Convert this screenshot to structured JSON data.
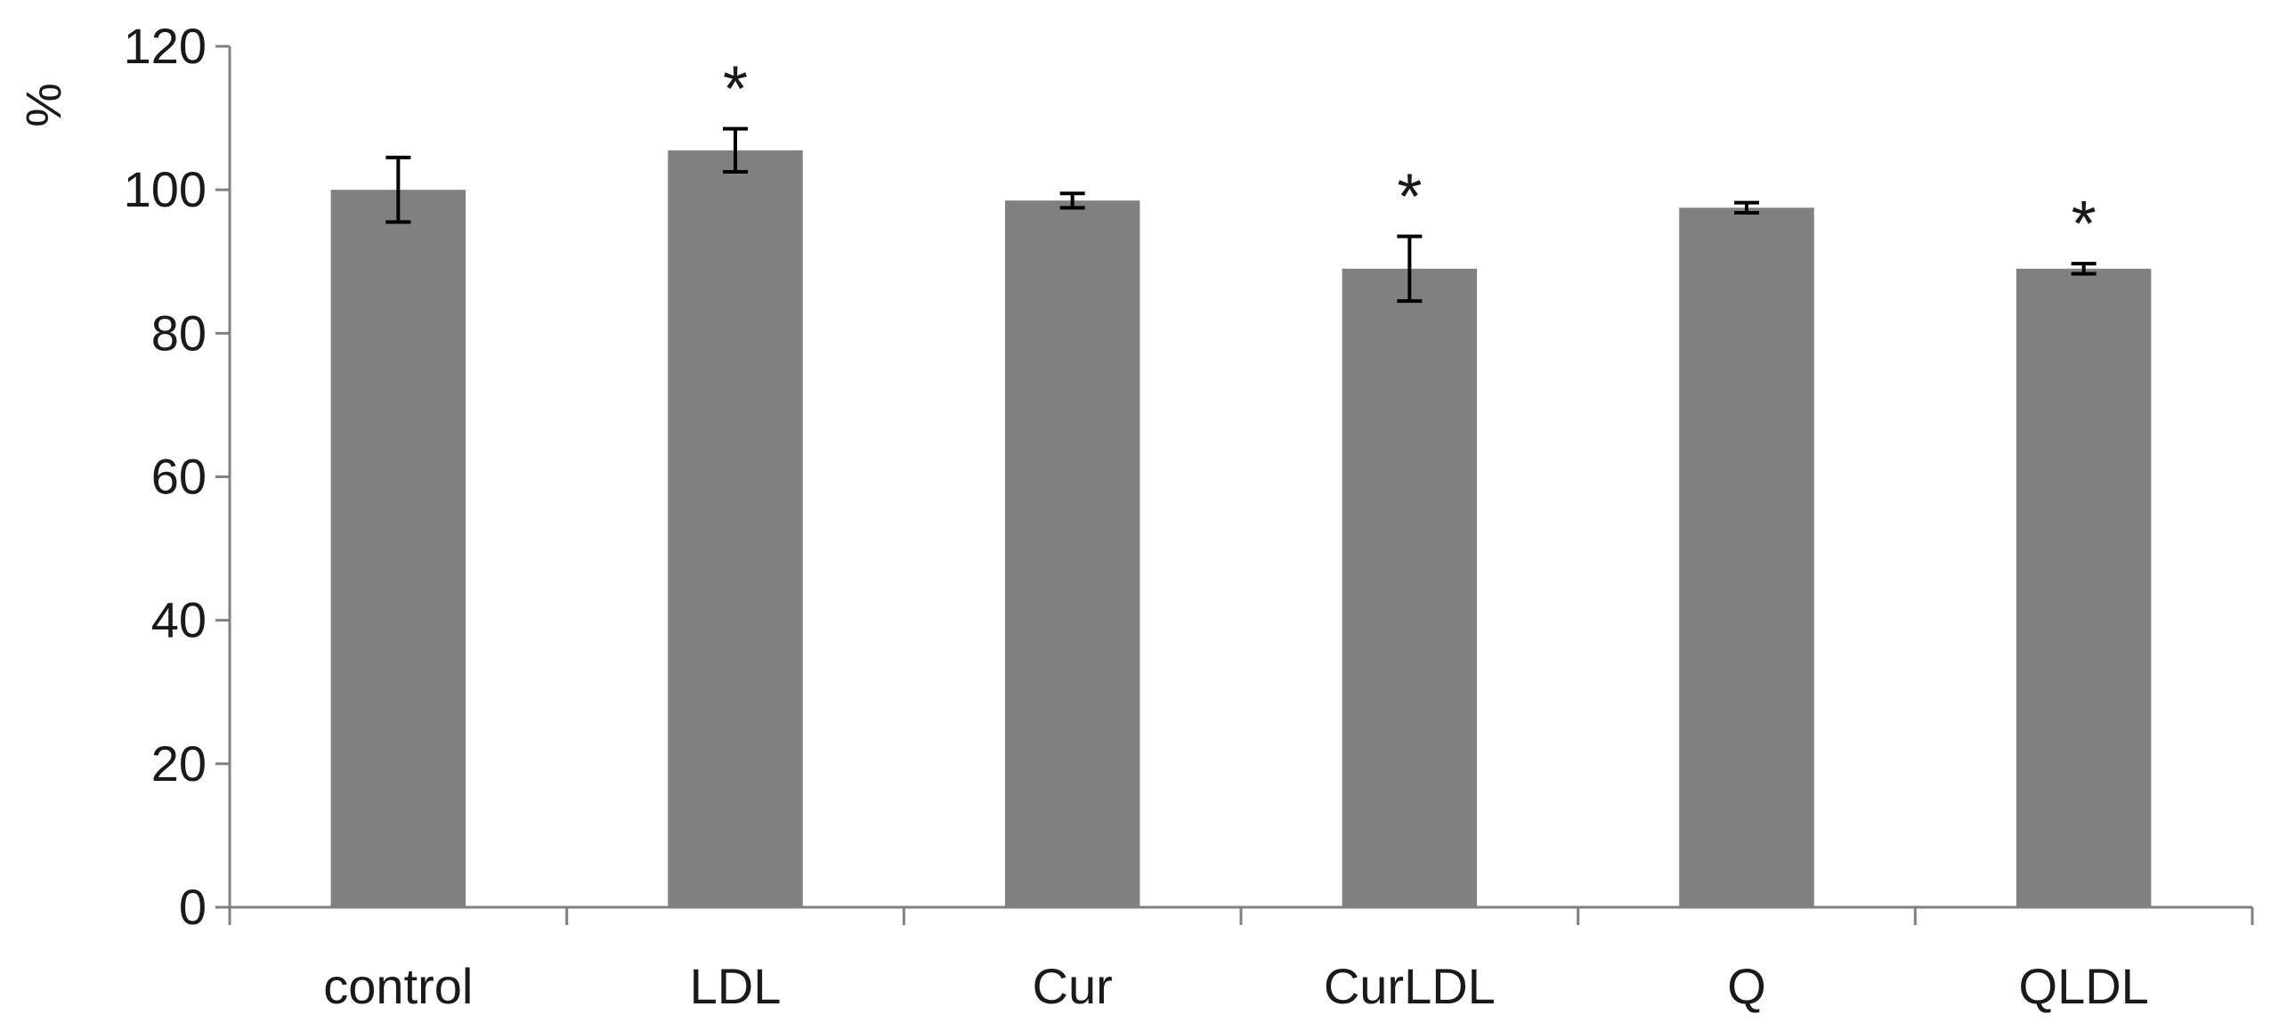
{
  "chart_data": {
    "type": "bar",
    "title": "",
    "xlabel": "",
    "ylabel": "%",
    "ylim": [
      0,
      120
    ],
    "yticks": [
      0,
      20,
      40,
      60,
      80,
      100,
      120
    ],
    "grid": false,
    "legend": "none",
    "categories": [
      "control",
      "LDL",
      "Cur",
      "CurLDL",
      "Q",
      "QLDL"
    ],
    "values": [
      100,
      105.5,
      98.5,
      89,
      97.5,
      89
    ],
    "errors": [
      4.5,
      3,
      1,
      4.5,
      0.7,
      0.7
    ],
    "significance": [
      "",
      "*",
      "",
      "*",
      "",
      "*"
    ],
    "bar_color": "#808080",
    "axis_color": "#808080",
    "error_color": "#000000"
  }
}
